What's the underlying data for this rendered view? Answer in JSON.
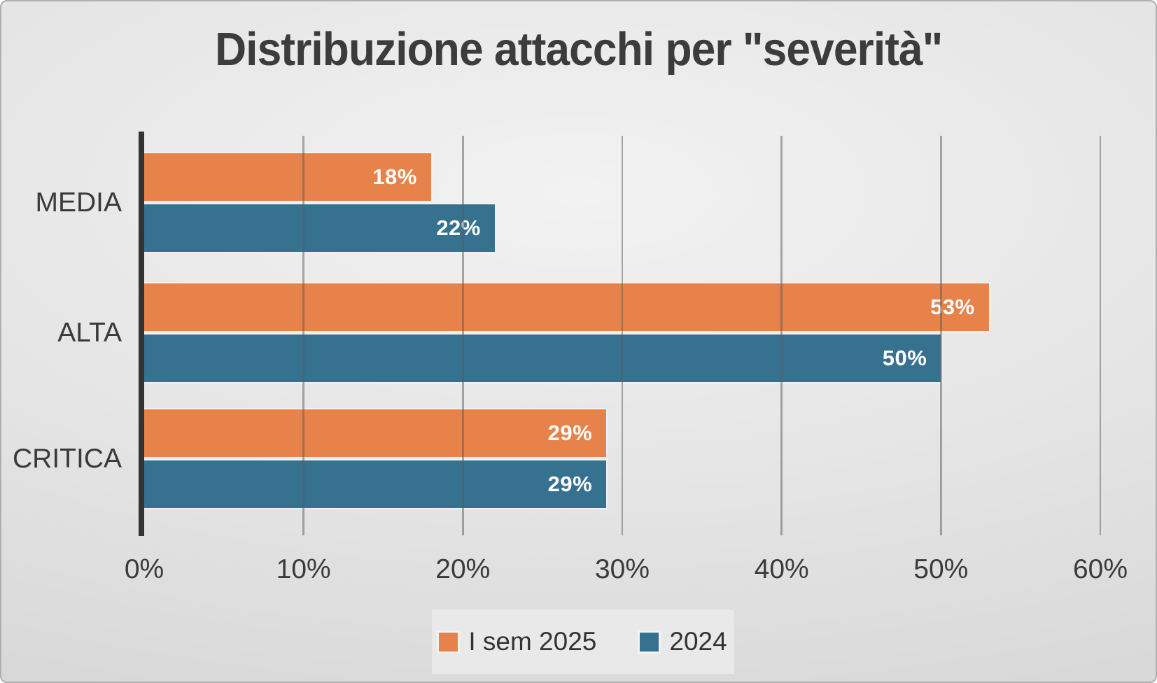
{
  "chart_data": {
    "type": "bar",
    "orientation": "horizontal",
    "title": "Distribuzione attacchi per \"severità\"",
    "categories": [
      "MEDIA",
      "ALTA",
      "CRITICA"
    ],
    "series": [
      {
        "name": "I sem 2025",
        "color": "#E7824A",
        "values": [
          18,
          53,
          29
        ],
        "labels": [
          "18%",
          "53%",
          "29%"
        ]
      },
      {
        "name": "2024",
        "color": "#36718F",
        "values": [
          22,
          50,
          29
        ],
        "labels": [
          "22%",
          "50%",
          "29%"
        ]
      }
    ],
    "x_ticks": [
      "0%",
      "10%",
      "20%",
      "30%",
      "40%",
      "50%",
      "60%"
    ],
    "xlim": [
      0,
      60
    ],
    "grid": true,
    "legend_position": "bottom",
    "value_label_color": "#FFFFFF",
    "axis_line_color": "#333333"
  }
}
